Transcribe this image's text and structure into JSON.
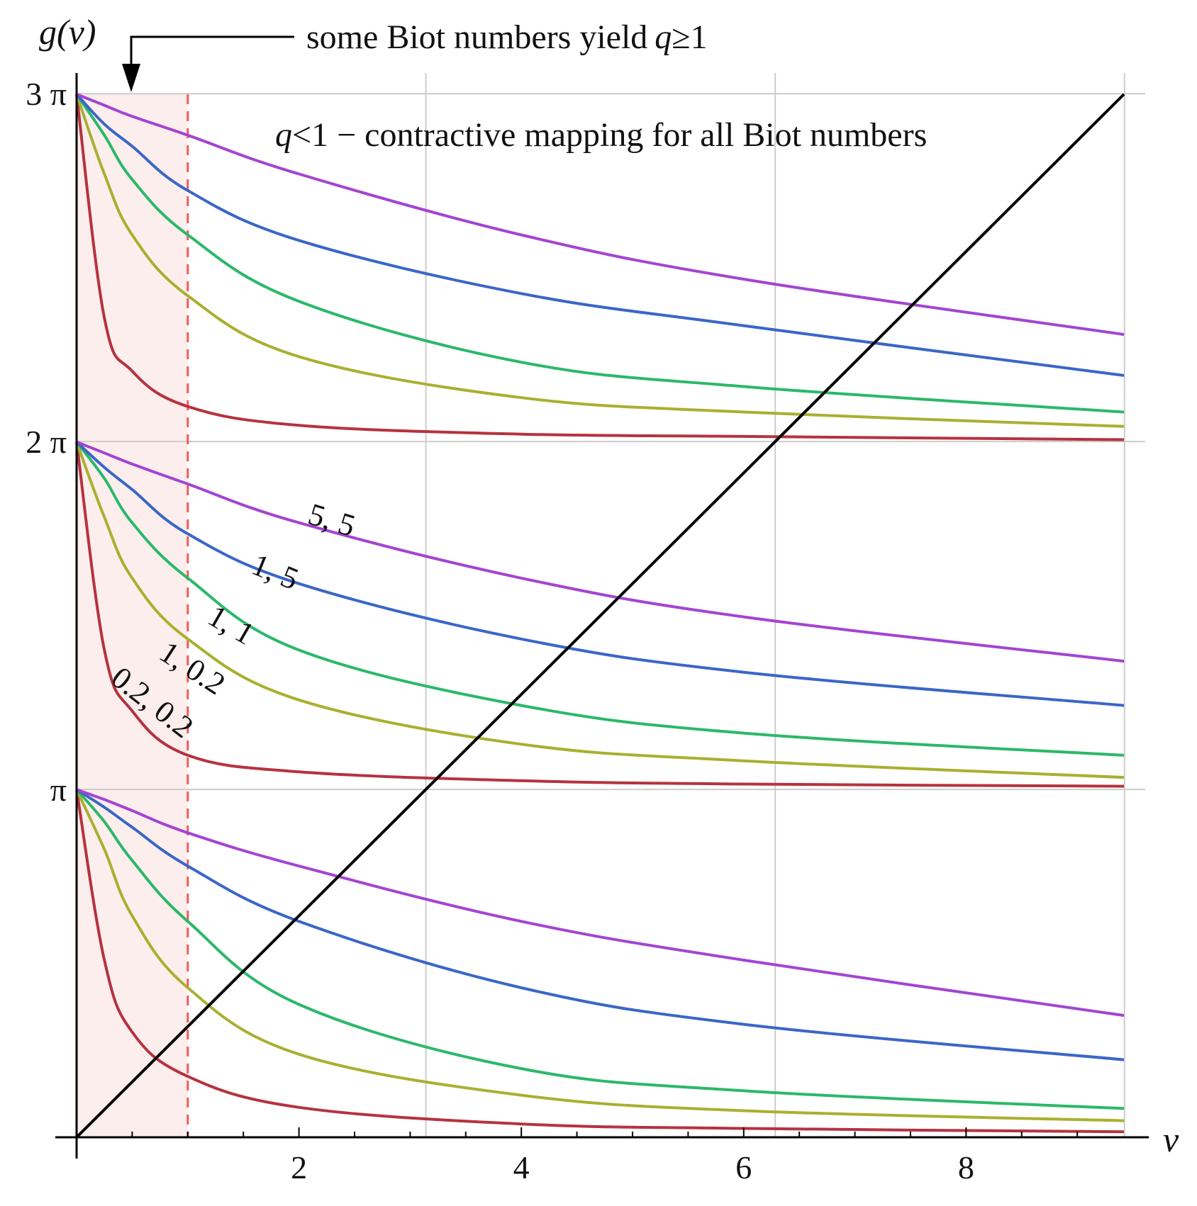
{
  "chart_data": {
    "type": "line",
    "xlabel": "ν",
    "ylabel": "g(ν)",
    "xlim": [
      0,
      9.42
    ],
    "ylim": [
      0,
      9.42
    ],
    "grid": true,
    "x_ticks": [
      {
        "value": 2,
        "label": "2"
      },
      {
        "value": 4,
        "label": "4"
      },
      {
        "value": 6,
        "label": "6"
      },
      {
        "value": 8,
        "label": "8"
      }
    ],
    "y_ticks": [
      {
        "value": 3.1416,
        "label": "π"
      },
      {
        "value": 6.2832,
        "label": "2 π"
      },
      {
        "value": 9.4248,
        "label": "3 π"
      }
    ],
    "shaded_region": {
      "x_from": 0,
      "x_to": 1,
      "color": "#fdeeee",
      "boundary_color": "#f25a5a"
    },
    "diagonal": {
      "x": [
        0,
        9.42
      ],
      "y": [
        0,
        9.42
      ],
      "color": "#000000"
    },
    "series": [
      {
        "label": "0.2, 0.2",
        "color": "#b5333f",
        "x": [
          0,
          0.25,
          0.5,
          1,
          2,
          4,
          6,
          9.42
        ],
        "branches": [
          [
            3.14,
            1.6,
            0.95,
            0.55,
            0.27,
            0.12,
            0.08,
            0.05
          ],
          [
            6.28,
            4.4,
            3.85,
            3.45,
            3.3,
            3.22,
            3.19,
            3.17
          ],
          [
            9.42,
            7.4,
            6.92,
            6.6,
            6.43,
            6.35,
            6.33,
            6.3
          ]
        ]
      },
      {
        "label": "1, 0.2",
        "color": "#a9b030",
        "x": [
          0,
          0.25,
          0.5,
          1,
          2,
          4,
          6,
          9.42
        ],
        "branches": [
          [
            3.14,
            2.6,
            2.0,
            1.35,
            0.75,
            0.38,
            0.24,
            0.15
          ],
          [
            6.28,
            5.6,
            5.05,
            4.5,
            3.95,
            3.55,
            3.4,
            3.25
          ],
          [
            9.42,
            8.7,
            8.15,
            7.6,
            7.05,
            6.68,
            6.55,
            6.42
          ]
        ]
      },
      {
        "label": "1, 1",
        "color": "#2cb86a",
        "x": [
          0,
          0.25,
          0.5,
          1,
          2,
          4,
          6,
          9.42
        ],
        "branches": [
          [
            3.14,
            2.85,
            2.5,
            1.95,
            1.2,
            0.62,
            0.42,
            0.26
          ],
          [
            6.28,
            5.95,
            5.55,
            5.05,
            4.4,
            3.9,
            3.65,
            3.45
          ],
          [
            9.42,
            9.05,
            8.65,
            8.15,
            7.55,
            7.0,
            6.78,
            6.55
          ]
        ]
      },
      {
        "label": "1, 5",
        "color": "#3a66c8",
        "x": [
          0,
          0.25,
          0.5,
          1,
          2,
          4,
          6,
          9.42
        ],
        "branches": [
          [
            3.14,
            2.98,
            2.8,
            2.45,
            1.95,
            1.35,
            1.02,
            0.7
          ],
          [
            6.28,
            6.05,
            5.85,
            5.45,
            5.0,
            4.5,
            4.2,
            3.9
          ],
          [
            9.42,
            9.15,
            8.95,
            8.55,
            8.1,
            7.62,
            7.33,
            6.88
          ]
        ]
      },
      {
        "label": "5, 5",
        "color": "#a445d1",
        "x": [
          0,
          0.25,
          0.5,
          1,
          2,
          4,
          6,
          9.42
        ],
        "branches": [
          [
            3.14,
            3.05,
            2.95,
            2.75,
            2.45,
            1.95,
            1.6,
            1.1
          ],
          [
            6.28,
            6.18,
            6.08,
            5.9,
            5.55,
            5.05,
            4.7,
            4.3
          ],
          [
            9.42,
            9.32,
            9.22,
            9.05,
            8.7,
            8.15,
            7.75,
            7.25
          ]
        ]
      }
    ],
    "annotations": {
      "top": "some Biot numbers yield",
      "top_q": "q",
      "top_rel": "≥1",
      "inside_q": "q",
      "inside_rest": "<1 − contractive mapping for all Biot numbers"
    }
  }
}
